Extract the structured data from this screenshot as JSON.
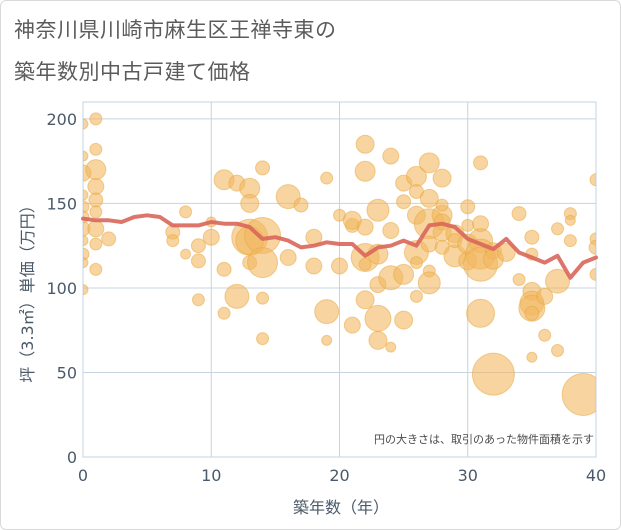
{
  "chart_data": {
    "type": "scatter",
    "title_line1": "神奈川県川崎市麻生区王禅寺東の",
    "title_line2": "築年数別中古戸建て価格",
    "xlabel": "築年数（年）",
    "ylabel": "坪（3.3㎡）単価（万円）",
    "note": "円の大きさは、取引のあった物件面積を示す",
    "xlim": [
      0,
      40
    ],
    "ylim": [
      0,
      210
    ],
    "xticks": [
      "0",
      "10",
      "20",
      "30",
      "40"
    ],
    "yticks": [
      "0",
      "50",
      "100",
      "150",
      "200"
    ],
    "colors": {
      "bubble": "#f2b860",
      "bubble_edge": "#e8a53a",
      "line": "#d9665a",
      "grid": "#c7d3e0"
    },
    "series": [
      {
        "name": "取引物件",
        "kind": "bubble",
        "points": [
          [
            0,
            197,
            5
          ],
          [
            0,
            178,
            5
          ],
          [
            0,
            168,
            8
          ],
          [
            0,
            155,
            5
          ],
          [
            0,
            148,
            6
          ],
          [
            0,
            142,
            6
          ],
          [
            0,
            135,
            7
          ],
          [
            0,
            128,
            5
          ],
          [
            0,
            120,
            6
          ],
          [
            0,
            115,
            5
          ],
          [
            0,
            99,
            5
          ],
          [
            1,
            200,
            6
          ],
          [
            1,
            182,
            6
          ],
          [
            1,
            170,
            10
          ],
          [
            1,
            160,
            8
          ],
          [
            1,
            152,
            7
          ],
          [
            1,
            145,
            6
          ],
          [
            1,
            135,
            8
          ],
          [
            1,
            126,
            6
          ],
          [
            1,
            111,
            6
          ],
          [
            2,
            129,
            7
          ],
          [
            7,
            133,
            7
          ],
          [
            7,
            128,
            6
          ],
          [
            8,
            145,
            6
          ],
          [
            8,
            120,
            5
          ],
          [
            9,
            125,
            7
          ],
          [
            9,
            116,
            7
          ],
          [
            9,
            93,
            6
          ],
          [
            10,
            130,
            8
          ],
          [
            10,
            139,
            5
          ],
          [
            11,
            164,
            10
          ],
          [
            11,
            111,
            7
          ],
          [
            11,
            85,
            6
          ],
          [
            12,
            162,
            8
          ],
          [
            12,
            95,
            12
          ],
          [
            13,
            159,
            10
          ],
          [
            13,
            150,
            9
          ],
          [
            13,
            130,
            18
          ],
          [
            13,
            128,
            14
          ],
          [
            13,
            115,
            7
          ],
          [
            14,
            171,
            7
          ],
          [
            14,
            131,
            18
          ],
          [
            14,
            115,
            15
          ],
          [
            14,
            94,
            6
          ],
          [
            14,
            70,
            6
          ],
          [
            16,
            154,
            12
          ],
          [
            16,
            118,
            8
          ],
          [
            17,
            149,
            7
          ],
          [
            18,
            113,
            8
          ],
          [
            18,
            130,
            8
          ],
          [
            19,
            165,
            6
          ],
          [
            19,
            86,
            12
          ],
          [
            19,
            69,
            5
          ],
          [
            20,
            143,
            6
          ],
          [
            20,
            113,
            8
          ],
          [
            21,
            137,
            7
          ],
          [
            21,
            78,
            8
          ],
          [
            21,
            140,
            9
          ],
          [
            22,
            185,
            9
          ],
          [
            22,
            169,
            10
          ],
          [
            22,
            136,
            8
          ],
          [
            22,
            118,
            14
          ],
          [
            22,
            93,
            9
          ],
          [
            22,
            114,
            6
          ],
          [
            23,
            146,
            11
          ],
          [
            23,
            120,
            10
          ],
          [
            23,
            102,
            8
          ],
          [
            23,
            82,
            13
          ],
          [
            23,
            69,
            9
          ],
          [
            24,
            178,
            8
          ],
          [
            24,
            134,
            8
          ],
          [
            24,
            106,
            12
          ],
          [
            24,
            65,
            5
          ],
          [
            25,
            162,
            8
          ],
          [
            25,
            151,
            7
          ],
          [
            25,
            108,
            10
          ],
          [
            25,
            81,
            9
          ],
          [
            26,
            166,
            10
          ],
          [
            26,
            157,
            7
          ],
          [
            26,
            143,
            9
          ],
          [
            26,
            121,
            12
          ],
          [
            26,
            115,
            6
          ],
          [
            26,
            95,
            6
          ],
          [
            27,
            174,
            10
          ],
          [
            27,
            153,
            9
          ],
          [
            27,
            138,
            15
          ],
          [
            27,
            126,
            8
          ],
          [
            27,
            110,
            6
          ],
          [
            27,
            103,
            11
          ],
          [
            28,
            165,
            9
          ],
          [
            28,
            143,
            10
          ],
          [
            28,
            139,
            8
          ],
          [
            28,
            124,
            7
          ],
          [
            28,
            133,
            9
          ],
          [
            28,
            149,
            6
          ],
          [
            29,
            132,
            9
          ],
          [
            29,
            119,
            11
          ],
          [
            29,
            128,
            7
          ],
          [
            30,
            148,
            7
          ],
          [
            30,
            137,
            6
          ],
          [
            30,
            126,
            10
          ],
          [
            30,
            116,
            9
          ],
          [
            31,
            174,
            7
          ],
          [
            31,
            138,
            8
          ],
          [
            31,
            128,
            12
          ],
          [
            31,
            120,
            15
          ],
          [
            31,
            114,
            17
          ],
          [
            31,
            85,
            14
          ],
          [
            32,
            122,
            8
          ],
          [
            32,
            117,
            10
          ],
          [
            32,
            49,
            21
          ],
          [
            33,
            121,
            9
          ],
          [
            34,
            144,
            7
          ],
          [
            34,
            105,
            6
          ],
          [
            35,
            130,
            7
          ],
          [
            35,
            120,
            6
          ],
          [
            35,
            98,
            9
          ],
          [
            35,
            91,
            12
          ],
          [
            35,
            88,
            13
          ],
          [
            35,
            85,
            7
          ],
          [
            35,
            59,
            5
          ],
          [
            36,
            95,
            8
          ],
          [
            36,
            72,
            6
          ],
          [
            37,
            63,
            6
          ],
          [
            37,
            104,
            12
          ],
          [
            37,
            135,
            6
          ],
          [
            38,
            144,
            6
          ],
          [
            38,
            128,
            6
          ],
          [
            38,
            140,
            5
          ],
          [
            39,
            37,
            21
          ],
          [
            40,
            164,
            6
          ],
          [
            40,
            129,
            6
          ],
          [
            40,
            124,
            7
          ],
          [
            40,
            108,
            6
          ]
        ]
      },
      {
        "name": "平均",
        "kind": "line",
        "x": [
          0,
          1,
          2,
          3,
          4,
          5,
          6,
          7,
          8,
          9,
          10,
          11,
          12,
          13,
          14,
          15,
          16,
          17,
          18,
          19,
          20,
          21,
          22,
          23,
          24,
          25,
          26,
          27,
          28,
          29,
          30,
          31,
          32,
          33,
          34,
          35,
          36,
          37,
          38,
          39,
          40
        ],
        "y": [
          141,
          140,
          140,
          139,
          142,
          143,
          142,
          137,
          137,
          137,
          139,
          138,
          138,
          136,
          129,
          130,
          128,
          124,
          125,
          127,
          126,
          126,
          119,
          124,
          125,
          128,
          125,
          137,
          138,
          136,
          129,
          126,
          123,
          129,
          121,
          118,
          115,
          119,
          106,
          115,
          118
        ]
      }
    ]
  }
}
